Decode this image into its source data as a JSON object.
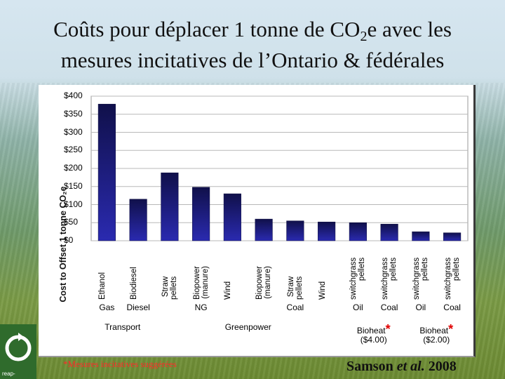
{
  "slide": {
    "title_line1_pre": "Coûts pour déplacer 1 tonne de CO",
    "title_line1_sub": "2",
    "title_line1_post": "e avec les",
    "title_line2": "mesures incitatives de l’Ontario & fédérales",
    "footnote": "*Mesures incitatives suggérées",
    "credit_author": "Samson",
    "credit_etal": "et al.",
    "credit_year": "2008",
    "logo_text": "reap-"
  },
  "chart_data": {
    "type": "bar",
    "ylabel": "Cost to Offset 1 tonne CO₂e",
    "ylim": [
      0,
      400
    ],
    "yticks": [
      0,
      50,
      100,
      150,
      200,
      250,
      300,
      350,
      400
    ],
    "ytick_labels": [
      "$0",
      "$50",
      "$100",
      "$150",
      "$200",
      "$250",
      "$300",
      "$350",
      "$400"
    ],
    "grid": true,
    "bar_color": "#1a1a7a",
    "categories": [
      [
        "Ethanol"
      ],
      [
        "Biodiesel"
      ],
      [
        "Straw",
        "pellets"
      ],
      [
        "Biopower",
        "(manure)"
      ],
      [
        "Wind"
      ],
      [
        "Biopower",
        "(manure)"
      ],
      [
        "Straw",
        "pellets"
      ],
      [
        "Wind"
      ],
      [
        "switchgrass",
        "pellets"
      ],
      [
        "switchgrass",
        "pellets"
      ],
      [
        "switchgrass",
        "pellets"
      ],
      [
        "switchgrass",
        "pellets"
      ]
    ],
    "values": [
      378,
      115,
      188,
      148,
      130,
      60,
      55,
      52,
      50,
      46,
      25,
      22
    ],
    "fuel_groups": [
      {
        "label": "Gas",
        "from": 0,
        "to": 0
      },
      {
        "label": "Diesel",
        "from": 1,
        "to": 1
      },
      {
        "label": "NG",
        "from": 2,
        "to": 4
      },
      {
        "label": "Coal",
        "from": 5,
        "to": 7
      },
      {
        "label": "Oil",
        "from": 8,
        "to": 8
      },
      {
        "label": "Coal",
        "from": 9,
        "to": 9
      },
      {
        "label": "Oil",
        "from": 10,
        "to": 10
      },
      {
        "label": "Coal",
        "from": 11,
        "to": 11
      }
    ],
    "sector_groups": [
      {
        "label": "Transport",
        "from": 0,
        "to": 1,
        "star": false,
        "note": ""
      },
      {
        "label": "Greenpower",
        "from": 2,
        "to": 7,
        "star": false,
        "note": ""
      },
      {
        "label": "Bioheat",
        "from": 8,
        "to": 9,
        "star": true,
        "note": "($4.00)"
      },
      {
        "label": "Bioheat",
        "from": 10,
        "to": 11,
        "star": true,
        "note": "($2.00)"
      }
    ]
  }
}
